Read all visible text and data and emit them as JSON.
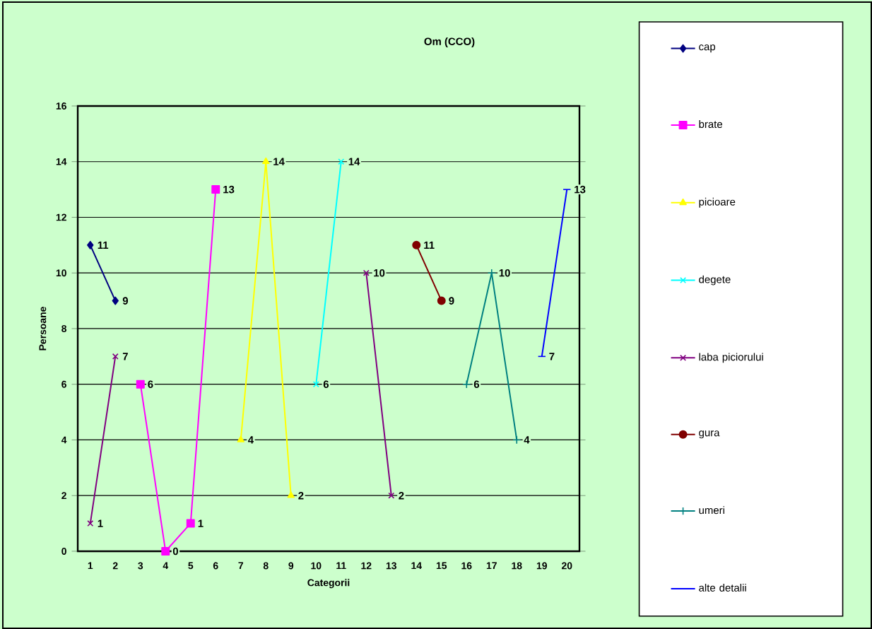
{
  "chart_data": {
    "type": "line",
    "title": "Om (CCO)",
    "xlabel": "Categorii",
    "ylabel": "Persoane",
    "categories": [
      "1",
      "2",
      "3",
      "4",
      "5",
      "6",
      "7",
      "8",
      "9",
      "10",
      "11",
      "12",
      "13",
      "14",
      "15",
      "16",
      "17",
      "18",
      "19",
      "20"
    ],
    "series": [
      {
        "name": "cap",
        "color": "#000080",
        "marker": "diamond",
        "values": [
          11,
          9,
          null,
          null,
          null,
          null,
          null,
          null,
          null,
          null,
          null,
          null,
          null,
          null,
          null,
          null,
          null,
          null,
          null,
          null
        ]
      },
      {
        "name": "brate",
        "color": "#ff00ff",
        "marker": "square",
        "values": [
          null,
          null,
          6,
          0,
          1,
          13,
          null,
          null,
          null,
          null,
          null,
          null,
          null,
          null,
          null,
          null,
          null,
          null,
          null,
          null
        ]
      },
      {
        "name": "picioare",
        "color": "#ffff00",
        "marker": "triangle",
        "values": [
          null,
          null,
          null,
          null,
          null,
          null,
          4,
          14,
          2,
          null,
          null,
          null,
          null,
          null,
          null,
          null,
          null,
          null,
          null,
          null
        ]
      },
      {
        "name": "degete",
        "color": "#00ffff",
        "marker": "cross",
        "values": [
          null,
          null,
          null,
          null,
          null,
          null,
          null,
          null,
          null,
          6,
          14,
          null,
          null,
          null,
          null,
          null,
          null,
          null,
          null,
          null
        ]
      },
      {
        "name": "laba piciorului",
        "color": "#800080",
        "marker": "cross",
        "values": [
          1,
          7,
          null,
          null,
          null,
          null,
          null,
          null,
          null,
          null,
          null,
          10,
          2,
          null,
          null,
          null,
          null,
          null,
          null,
          null
        ]
      },
      {
        "name": "gura",
        "color": "#800000",
        "marker": "circle",
        "values": [
          null,
          null,
          null,
          null,
          null,
          null,
          null,
          null,
          null,
          null,
          null,
          null,
          null,
          11,
          9,
          null,
          null,
          null,
          null,
          null
        ]
      },
      {
        "name": "umeri",
        "color": "#008080",
        "marker": "plus",
        "values": [
          null,
          null,
          null,
          null,
          null,
          null,
          null,
          null,
          null,
          null,
          null,
          null,
          null,
          null,
          null,
          6,
          10,
          4,
          null,
          null
        ]
      },
      {
        "name": "alte detalii",
        "color": "#0000ff",
        "marker": "none",
        "values": [
          null,
          null,
          null,
          null,
          null,
          null,
          null,
          null,
          null,
          null,
          null,
          null,
          null,
          null,
          null,
          null,
          null,
          null,
          7,
          13
        ]
      }
    ],
    "ylim": [
      0,
      16
    ],
    "yticks": [
      0,
      2,
      4,
      6,
      8,
      10,
      12,
      14,
      16
    ],
    "grid": "y",
    "legend": "right",
    "data_labels": true
  }
}
